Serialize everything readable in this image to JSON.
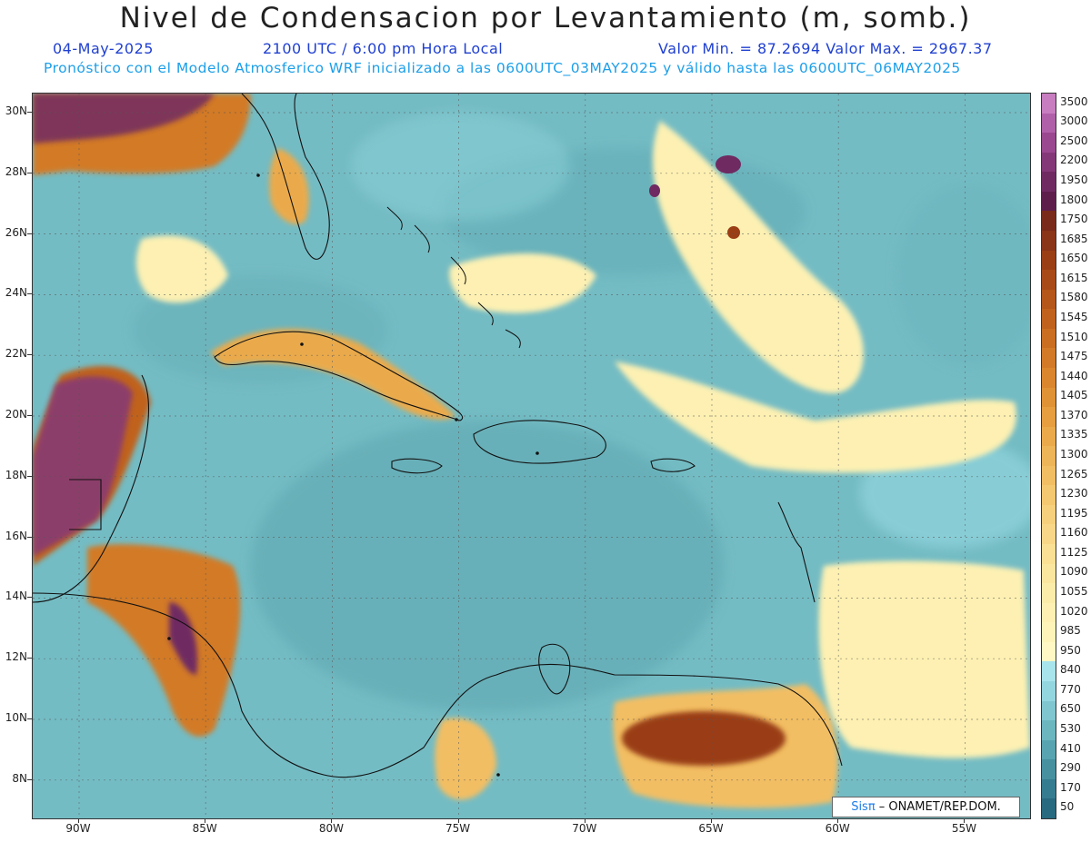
{
  "header": {
    "title": "Nivel de Condensacion por Levantamiento (m, somb.)",
    "date": "04-May-2025",
    "time": "2100 UTC / 6:00 pm Hora Local",
    "min_max": "Valor Min. = 87.2694   Valor Max. = 2967.37",
    "model_note": "Pronóstico con el Modelo Atmosferico WRF inicializado a las 0600UTC_03MAY2025 y válido hasta las  0600UTC_06MAY2025"
  },
  "map": {
    "lat_labels": [
      "30N",
      "28N",
      "26N",
      "24N",
      "22N",
      "20N",
      "18N",
      "16N",
      "14N",
      "12N",
      "10N",
      "8N"
    ],
    "lon_labels": [
      "90W",
      "85W",
      "80W",
      "75W",
      "70W",
      "65W",
      "60W",
      "55W"
    ],
    "base_color": "#74bcc4",
    "credit_prefix": "Sisπ",
    "credit_suffix": " – ONAMET/REP.DOM."
  },
  "colorbar": {
    "labels": [
      "3500",
      "3000",
      "2500",
      "2200",
      "1950",
      "1800",
      "1750",
      "1685",
      "1650",
      "1615",
      "1580",
      "1545",
      "1510",
      "1475",
      "1440",
      "1405",
      "1370",
      "1335",
      "1300",
      "1265",
      "1230",
      "1195",
      "1160",
      "1125",
      "1090",
      "1055",
      "1020",
      "985",
      "950",
      "840",
      "770",
      "650",
      "530",
      "410",
      "290",
      "170",
      "50"
    ],
    "colors": [
      "#c77dc0",
      "#b060a8",
      "#9a4890",
      "#843878",
      "#702a62",
      "#5e1e4c",
      "#7a2a1a",
      "#8a3418",
      "#9a3e16",
      "#a84a18",
      "#b5561a",
      "#c0621e",
      "#ca6e22",
      "#d27a28",
      "#da862e",
      "#e09236",
      "#e69e40",
      "#eaaa4c",
      "#eeb458",
      "#f2be64",
      "#f4c870",
      "#f6d07c",
      "#f8d888",
      "#fae094",
      "#fbe6a0",
      "#fcecaa",
      "#fdf0b2",
      "#fef4ba",
      "#fff8c4",
      "#a8e4ec",
      "#94d6e0",
      "#80c6d0",
      "#6cb6c0",
      "#58a4b0",
      "#4690a0",
      "#367c90",
      "#286a80"
    ]
  }
}
